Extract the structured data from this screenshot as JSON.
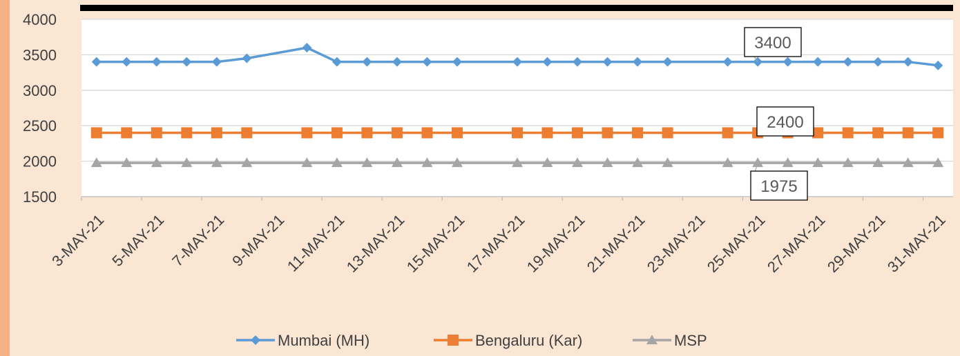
{
  "chart_data": {
    "type": "line",
    "title": "",
    "xlabel": "",
    "ylabel": "",
    "ylim": [
      1500,
      4000
    ],
    "yticks": [
      1500,
      2000,
      2500,
      3000,
      3500,
      4000
    ],
    "xtick_labels": [
      "3-MAY-21",
      "5-MAY-21",
      "7-MAY-21",
      "9-MAY-21",
      "11-MAY-21",
      "13-MAY-21",
      "15-MAY-21",
      "17-MAY-21",
      "19-MAY-21",
      "21-MAY-21",
      "23-MAY-21",
      "25-MAY-21",
      "27-MAY-21",
      "29-MAY-21",
      "31-MAY-21"
    ],
    "legend_position": "bottom",
    "grid": true,
    "series": [
      {
        "name": "Mumbai (MH)",
        "color": "#5b9bd5",
        "marker": "diamond",
        "x": [
          "3-MAY-21",
          "4-MAY-21",
          "5-MAY-21",
          "6-MAY-21",
          "7-MAY-21",
          "8-MAY-21",
          "10-MAY-21",
          "11-MAY-21",
          "12-MAY-21",
          "13-MAY-21",
          "14-MAY-21",
          "15-MAY-21",
          "17-MAY-21",
          "18-MAY-21",
          "19-MAY-21",
          "20-MAY-21",
          "21-MAY-21",
          "22-MAY-21",
          "24-MAY-21",
          "25-MAY-21",
          "26-MAY-21",
          "27-MAY-21",
          "28-MAY-21",
          "29-MAY-21",
          "30-MAY-21",
          "31-MAY-21"
        ],
        "values": [
          3400,
          3400,
          3400,
          3400,
          3400,
          3450,
          3600,
          3400,
          3400,
          3400,
          3400,
          3400,
          3400,
          3400,
          3400,
          3400,
          3400,
          3400,
          3400,
          3400,
          3400,
          3400,
          3400,
          3400,
          3400,
          3350
        ]
      },
      {
        "name": "Bengaluru (Kar)",
        "color": "#ed7d31",
        "marker": "square",
        "x": [
          "3-MAY-21",
          "4-MAY-21",
          "5-MAY-21",
          "6-MAY-21",
          "7-MAY-21",
          "8-MAY-21",
          "10-MAY-21",
          "11-MAY-21",
          "12-MAY-21",
          "13-MAY-21",
          "14-MAY-21",
          "15-MAY-21",
          "17-MAY-21",
          "18-MAY-21",
          "19-MAY-21",
          "20-MAY-21",
          "21-MAY-21",
          "22-MAY-21",
          "24-MAY-21",
          "25-MAY-21",
          "26-MAY-21",
          "27-MAY-21",
          "28-MAY-21",
          "29-MAY-21",
          "30-MAY-21",
          "31-MAY-21"
        ],
        "values": [
          2400,
          2400,
          2400,
          2400,
          2400,
          2400,
          2400,
          2400,
          2400,
          2400,
          2400,
          2400,
          2400,
          2400,
          2400,
          2400,
          2400,
          2400,
          2400,
          2400,
          2400,
          2400,
          2400,
          2400,
          2400,
          2400
        ]
      },
      {
        "name": "MSP",
        "color": "#a5a5a5",
        "marker": "triangle",
        "x": [
          "3-MAY-21",
          "4-MAY-21",
          "5-MAY-21",
          "6-MAY-21",
          "7-MAY-21",
          "8-MAY-21",
          "10-MAY-21",
          "11-MAY-21",
          "12-MAY-21",
          "13-MAY-21",
          "14-MAY-21",
          "15-MAY-21",
          "17-MAY-21",
          "18-MAY-21",
          "19-MAY-21",
          "20-MAY-21",
          "21-MAY-21",
          "22-MAY-21",
          "24-MAY-21",
          "25-MAY-21",
          "26-MAY-21",
          "27-MAY-21",
          "28-MAY-21",
          "29-MAY-21",
          "30-MAY-21",
          "31-MAY-21"
        ],
        "values": [
          1975,
          1975,
          1975,
          1975,
          1975,
          1975,
          1975,
          1975,
          1975,
          1975,
          1975,
          1975,
          1975,
          1975,
          1975,
          1975,
          1975,
          1975,
          1975,
          1975,
          1975,
          1975,
          1975,
          1975,
          1975,
          1975
        ]
      }
    ],
    "annotations": [
      {
        "text": "3400",
        "series": "Mumbai (MH)",
        "x": "25-MAY-21",
        "value": 3400
      },
      {
        "text": "2400",
        "series": "Bengaluru (Kar)",
        "x": "25-MAY-21",
        "value": 2400
      },
      {
        "text": "1975",
        "series": "MSP",
        "x": "25-MAY-21",
        "value": 1975
      }
    ]
  }
}
